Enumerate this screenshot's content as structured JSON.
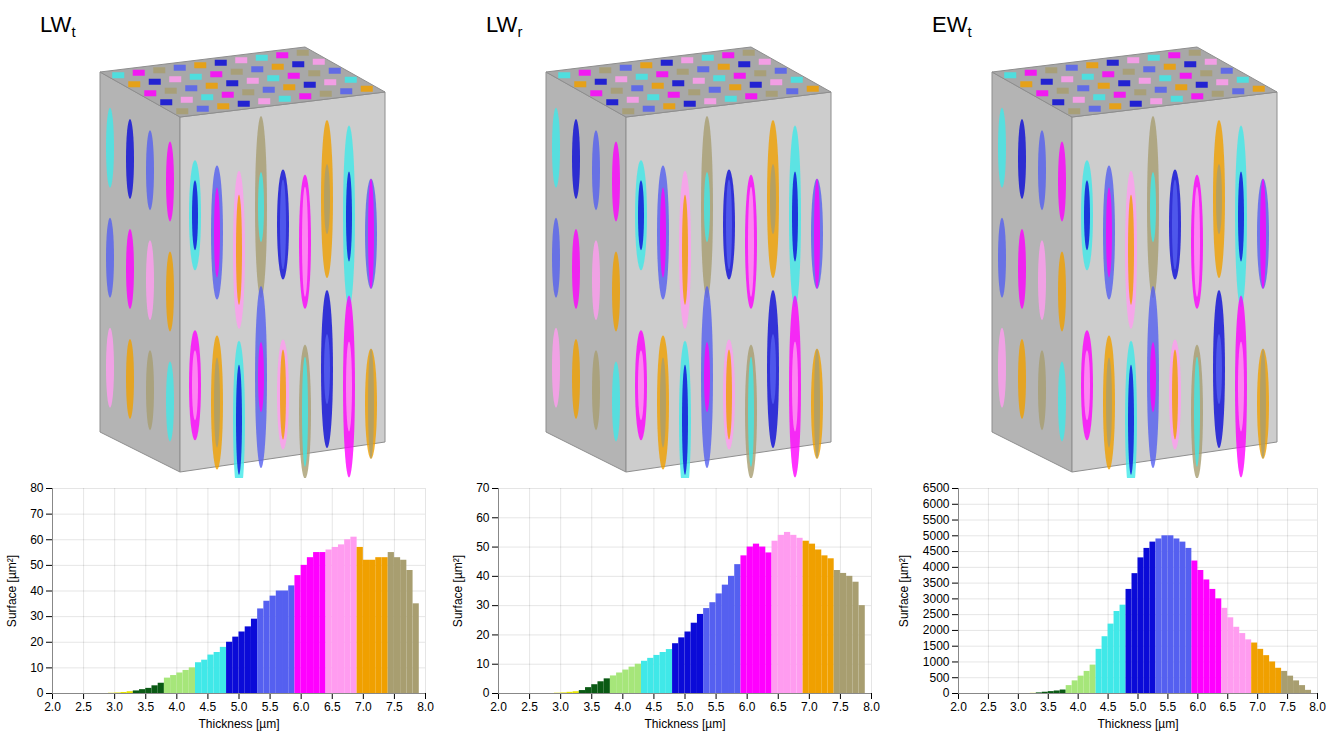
{
  "chart_data": [
    {
      "type": "histogram",
      "title": "LWt",
      "x_label": "Thickness [µm]",
      "y_label": "Surface [µm²]",
      "bins": [
        2.9,
        3.0,
        3.1,
        3.2,
        3.3,
        3.4,
        3.5,
        3.6,
        3.7,
        3.8,
        3.9,
        4.0,
        4.1,
        4.2,
        4.3,
        4.4,
        4.5,
        4.6,
        4.7,
        4.8,
        4.9,
        5.0,
        5.1,
        5.2,
        5.3,
        5.4,
        5.5,
        5.6,
        5.7,
        5.8,
        5.9,
        6.0,
        6.1,
        6.2,
        6.3,
        6.4,
        6.5,
        6.6,
        6.7,
        6.8,
        6.9,
        7.0,
        7.1,
        7.2,
        7.3,
        7.4,
        7.5,
        7.6,
        7.7,
        7.8,
        7.9
      ],
      "counts": [
        0.1,
        0.2,
        0.4,
        0.7,
        1,
        1.5,
        2,
        3,
        4,
        6,
        7,
        8,
        9,
        10,
        12,
        13,
        15,
        16,
        18,
        20,
        22,
        24,
        26,
        29,
        33,
        36,
        38,
        40,
        40,
        42,
        46,
        50,
        53,
        55,
        55,
        56,
        57,
        58,
        60,
        61,
        57,
        52,
        52,
        53,
        53,
        55,
        53,
        52,
        48,
        35
      ],
      "colors": [
        "#e8e800",
        "#e8e800",
        "#e8e800",
        "#e8e800",
        "#0a5a14",
        "#0a5a14",
        "#0a5a14",
        "#0a5a14",
        "#0a5a14",
        "#a6e67a",
        "#a6e67a",
        "#a6e67a",
        "#a6e67a",
        "#a6e67a",
        "#40e8e8",
        "#40e8e8",
        "#40e8e8",
        "#40e8e8",
        "#40e8e8",
        "#0b0bd8",
        "#0b0bd8",
        "#0b0bd8",
        "#0b0bd8",
        "#0b0bd8",
        "#5560f0",
        "#5560f0",
        "#5560f0",
        "#5560f0",
        "#5560f0",
        "#5560f0",
        "#ff00ff",
        "#ff00ff",
        "#ff00ff",
        "#ff00ff",
        "#ff00ff",
        "#ff9cf0",
        "#ff9cf0",
        "#ff9cf0",
        "#ff9cf0",
        "#ff9cf0",
        "#f0a000",
        "#f0a000",
        "#f0a000",
        "#f0a000",
        "#f0a000",
        "#a89e70",
        "#a89e70",
        "#a89e70",
        "#a89e70",
        "#a89e70"
      ],
      "xlim": [
        2,
        8
      ],
      "xticks": [
        {
          "value": 2,
          "label": "2.0"
        },
        2.5,
        {
          "value": 3,
          "label": "3.0"
        },
        3.5,
        {
          "value": 4,
          "label": "4.0"
        },
        4.5,
        {
          "value": 5,
          "label": "5.0"
        },
        5.5,
        {
          "value": 6,
          "label": "6.0"
        },
        6.5,
        {
          "value": 7,
          "label": "7.0"
        },
        7.5,
        {
          "value": 8,
          "label": "8.0"
        }
      ],
      "ylim": [
        0,
        80
      ],
      "yticks": [
        0,
        10,
        20,
        30,
        40,
        50,
        60,
        70,
        80
      ],
      "grid": true
    },
    {
      "type": "histogram",
      "title": "LWr",
      "x_label": "Thickness [µm]",
      "y_label": "Surface [µm²]",
      "bins": [
        2.9,
        3.0,
        3.1,
        3.2,
        3.3,
        3.4,
        3.5,
        3.6,
        3.7,
        3.8,
        3.9,
        4.0,
        4.1,
        4.2,
        4.3,
        4.4,
        4.5,
        4.6,
        4.7,
        4.8,
        4.9,
        5.0,
        5.1,
        5.2,
        5.3,
        5.4,
        5.5,
        5.6,
        5.7,
        5.8,
        5.9,
        6.0,
        6.1,
        6.2,
        6.3,
        6.4,
        6.5,
        6.6,
        6.7,
        6.8,
        6.9,
        7.0,
        7.1,
        7.2,
        7.3,
        7.4,
        7.5,
        7.6,
        7.7,
        7.8,
        7.9
      ],
      "counts": [
        0.1,
        0.2,
        0.4,
        0.6,
        1,
        2,
        3,
        4,
        5,
        6,
        7,
        8,
        9,
        10,
        11,
        12,
        13,
        14,
        15,
        17,
        19,
        21,
        24,
        27,
        29,
        31,
        34,
        37,
        40,
        44,
        47,
        50,
        51,
        50,
        48,
        52,
        54,
        55,
        54,
        53,
        52,
        51,
        49,
        47,
        46,
        42,
        41,
        40,
        38,
        30
      ],
      "colors": [
        "#e8e800",
        "#e8e800",
        "#e8e800",
        "#e8e800",
        "#0a5a14",
        "#0a5a14",
        "#0a5a14",
        "#0a5a14",
        "#0a5a14",
        "#a6e67a",
        "#a6e67a",
        "#a6e67a",
        "#a6e67a",
        "#a6e67a",
        "#40e8e8",
        "#40e8e8",
        "#40e8e8",
        "#40e8e8",
        "#40e8e8",
        "#0b0bd8",
        "#0b0bd8",
        "#0b0bd8",
        "#0b0bd8",
        "#0b0bd8",
        "#5560f0",
        "#5560f0",
        "#5560f0",
        "#5560f0",
        "#5560f0",
        "#5560f0",
        "#ff00ff",
        "#ff00ff",
        "#ff00ff",
        "#ff00ff",
        "#ff00ff",
        "#ff9cf0",
        "#ff9cf0",
        "#ff9cf0",
        "#ff9cf0",
        "#ff9cf0",
        "#f0a000",
        "#f0a000",
        "#f0a000",
        "#f0a000",
        "#f0a000",
        "#a89e70",
        "#a89e70",
        "#a89e70",
        "#a89e70",
        "#a89e70"
      ],
      "xlim": [
        2,
        8
      ],
      "xticks": [
        {
          "value": 2,
          "label": "2.0"
        },
        2.5,
        {
          "value": 3,
          "label": "3.0"
        },
        3.5,
        {
          "value": 4,
          "label": "4.0"
        },
        4.5,
        {
          "value": 5,
          "label": "5.0"
        },
        5.5,
        {
          "value": 6,
          "label": "6.0"
        },
        6.5,
        {
          "value": 7,
          "label": "7.0"
        },
        7.5,
        {
          "value": 8,
          "label": "8.0"
        }
      ],
      "ylim": [
        0,
        70
      ],
      "yticks": [
        0,
        10,
        20,
        30,
        40,
        50,
        60,
        70
      ],
      "grid": true
    },
    {
      "type": "histogram",
      "title": "EWt",
      "x_label": "Thickness [µm]",
      "y_label": "Surface [µm²]",
      "bins": [
        2.9,
        3.0,
        3.1,
        3.2,
        3.3,
        3.4,
        3.5,
        3.6,
        3.7,
        3.8,
        3.9,
        4.0,
        4.1,
        4.2,
        4.3,
        4.4,
        4.5,
        4.6,
        4.7,
        4.8,
        4.9,
        5.0,
        5.1,
        5.2,
        5.3,
        5.4,
        5.5,
        5.6,
        5.7,
        5.8,
        5.9,
        6.0,
        6.1,
        6.2,
        6.3,
        6.4,
        6.5,
        6.6,
        6.7,
        6.8,
        6.9,
        7.0,
        7.1,
        7.2,
        7.3,
        7.4,
        7.5,
        7.6,
        7.7,
        7.8,
        7.9
      ],
      "counts": [
        0,
        0,
        0,
        5,
        20,
        40,
        60,
        80,
        110,
        250,
        400,
        550,
        700,
        900,
        1400,
        1800,
        2200,
        2600,
        2800,
        3300,
        3800,
        4300,
        4600,
        4800,
        4900,
        5000,
        5000,
        4900,
        4800,
        4600,
        4200,
        3900,
        3600,
        3300,
        3000,
        2700,
        2400,
        2100,
        1900,
        1700,
        1600,
        1400,
        1200,
        1000,
        800,
        700,
        550,
        400,
        250,
        100
      ],
      "colors": [
        "#e8e800",
        "#e8e800",
        "#e8e800",
        "#e8e800",
        "#0a5a14",
        "#0a5a14",
        "#0a5a14",
        "#0a5a14",
        "#0a5a14",
        "#a6e67a",
        "#a6e67a",
        "#a6e67a",
        "#a6e67a",
        "#a6e67a",
        "#40e8e8",
        "#40e8e8",
        "#40e8e8",
        "#40e8e8",
        "#40e8e8",
        "#0b0bd8",
        "#0b0bd8",
        "#0b0bd8",
        "#0b0bd8",
        "#0b0bd8",
        "#5560f0",
        "#5560f0",
        "#5560f0",
        "#5560f0",
        "#5560f0",
        "#5560f0",
        "#ff00ff",
        "#ff00ff",
        "#ff00ff",
        "#ff00ff",
        "#ff00ff",
        "#ff9cf0",
        "#ff9cf0",
        "#ff9cf0",
        "#ff9cf0",
        "#ff9cf0",
        "#f0a000",
        "#f0a000",
        "#f0a000",
        "#f0a000",
        "#f0a000",
        "#a89e70",
        "#a89e70",
        "#a89e70",
        "#a89e70",
        "#a89e70"
      ],
      "xlim": [
        2,
        8
      ],
      "xticks": [
        {
          "value": 2,
          "label": "2.0"
        },
        2.5,
        {
          "value": 3,
          "label": "3.0"
        },
        3.5,
        {
          "value": 4,
          "label": "4.0"
        },
        4.5,
        {
          "value": 5,
          "label": "5.0"
        },
        5.5,
        {
          "value": 6,
          "label": "6.0"
        },
        6.5,
        {
          "value": 7,
          "label": "7.0"
        },
        7.5,
        {
          "value": 8,
          "label": "8.0"
        }
      ],
      "ylim": [
        0,
        6500
      ],
      "yticks": [
        0,
        500,
        1000,
        1500,
        2000,
        2500,
        3000,
        3500,
        4000,
        4500,
        5000,
        5500,
        6000,
        6500
      ],
      "grid": true
    }
  ]
}
